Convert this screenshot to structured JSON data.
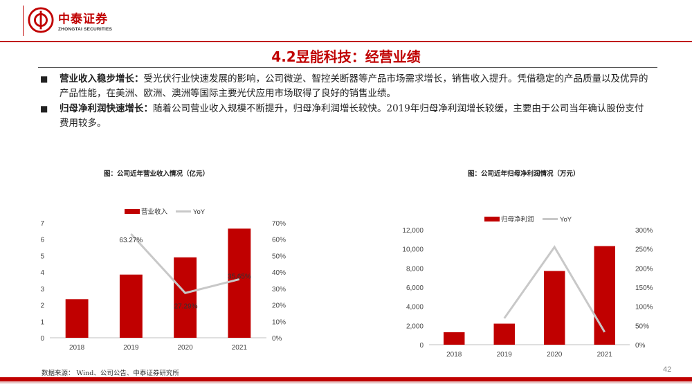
{
  "header": {
    "logo_cn": "中泰证券",
    "logo_en": "ZHONGTAI SECURITIES"
  },
  "slide": {
    "title": "4.2昱能科技：经营业绩",
    "bullets": [
      {
        "bold": "营业收入稳步增长：",
        "text": "受光伏行业快速发展的影响，公司微逆、智控关断器等产品市场需求增长，销售收入提升。凭借稳定的产品质量以及优异的产品性能，在美洲、欧洲、澳洲等国际主要光伏应用市场取得了良好的销售业绩。"
      },
      {
        "bold": "归母净利润快速增长：",
        "text": "随着公司营业收入规模不断提升，归母净利润增长较快。2019年归母净利润增长较缓，主要由于公司当年确认股份支付费用较多。"
      }
    ],
    "source": "数据来源： Wind、公司公告、中泰证券研究所",
    "page_number": "42"
  },
  "colors": {
    "brand_red": "#c00000",
    "bar_red": "#c00000",
    "line_gray": "#c8c8c8"
  },
  "chart_data": [
    {
      "type": "bar",
      "title": "图：公司近年营业收入情况（亿元）",
      "categories": [
        "2018",
        "2019",
        "2020",
        "2021"
      ],
      "series": [
        {
          "name": "营业收入",
          "kind": "bar",
          "axis": "left",
          "values": [
            2.35,
            3.85,
            4.9,
            6.65
          ]
        },
        {
          "name": "YoY",
          "kind": "line",
          "axis": "right",
          "values": [
            null,
            63.27,
            27.29,
            35.65
          ]
        }
      ],
      "data_labels": [
        "63.27%",
        "27.29%",
        "35.65%"
      ],
      "y_left": {
        "min": 0,
        "max": 7,
        "ticks": [
          "0",
          "1",
          "2",
          "3",
          "4",
          "5",
          "6",
          "7"
        ]
      },
      "y_right": {
        "min": 0,
        "max": 70,
        "ticks": [
          "0%",
          "10%",
          "20%",
          "30%",
          "40%",
          "50%",
          "60%",
          "70%"
        ]
      },
      "legend": "top-left",
      "grid": false
    },
    {
      "type": "bar",
      "title": "图：公司近年归母净利润情况（万元）",
      "categories": [
        "2018",
        "2019",
        "2020",
        "2021"
      ],
      "series": [
        {
          "name": "归母净利润",
          "kind": "bar",
          "axis": "left",
          "values": [
            1300,
            2200,
            7700,
            10300
          ]
        },
        {
          "name": "YoY",
          "kind": "line",
          "axis": "right",
          "values": [
            null,
            69,
            255,
            33
          ]
        }
      ],
      "y_left": {
        "min": 0,
        "max": 12000,
        "ticks": [
          "0",
          "2,000",
          "4,000",
          "6,000",
          "8,000",
          "10,000",
          "12,000"
        ]
      },
      "y_right": {
        "min": 0,
        "max": 300,
        "ticks": [
          "0%",
          "50%",
          "100%",
          "150%",
          "200%",
          "250%",
          "300%"
        ]
      },
      "legend": "top-center",
      "grid": false
    }
  ]
}
